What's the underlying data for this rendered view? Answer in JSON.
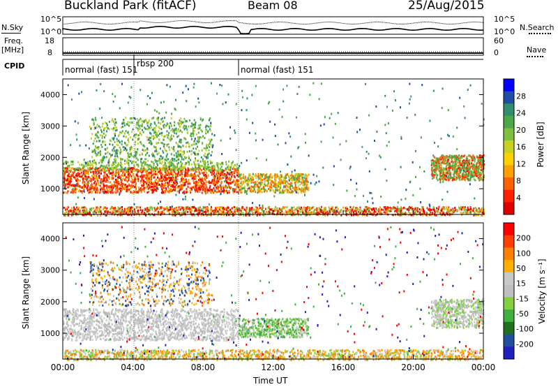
{
  "header": {
    "station": "Buckland Park (fitACF)",
    "beam": "Beam 08",
    "date": "25/Aug/2015"
  },
  "panels": {
    "nsky_label": "N.Sky",
    "nsky_ticks": [
      "10^5",
      "10^0"
    ],
    "nsearch_label": "N.Search",
    "nsearch_ticks": [
      "10^5",
      "10^0"
    ],
    "freq_label_1": "Freq.",
    "freq_label_2": "[MHz]",
    "freq_ticks": [
      "18",
      "8"
    ],
    "nave_label": "Nave",
    "nave_ticks": [
      "60",
      "0"
    ],
    "cpid_label": "CPID",
    "cpid_segments": [
      "normal (fast) 151",
      "rbsp 200",
      "normal (fast) 151"
    ]
  },
  "colors": {
    "power_scale": [
      "#0000ff",
      "#1f4ea8",
      "#2f8f6f",
      "#4aa84a",
      "#7fc040",
      "#c8d020",
      "#ffd000",
      "#ffa000",
      "#ff6000",
      "#ff2000",
      "#e00000"
    ],
    "velocity_scale": [
      "#2020c0",
      "#2050a0",
      "#207020",
      "#40b040",
      "#80d040",
      "#c0c0c0",
      "#c8c8c8",
      "#ffb000",
      "#ff8000",
      "#ff4000",
      "#ff0000"
    ]
  },
  "chart_data": [
    {
      "type": "heatmap",
      "title": "",
      "xlabel": "",
      "ylabel": "Slant Range [km]",
      "xlim": [
        "00:00",
        "00:00"
      ],
      "ylim": [
        180,
        4500
      ],
      "yticks": [
        "4000",
        "3000",
        "2000",
        "1000"
      ],
      "colorbar_label": "Power [dB]",
      "colorbar_ticks": [
        "28",
        "24",
        "20",
        "16",
        "12",
        "8",
        "4"
      ],
      "colorbar_range": [
        0,
        30
      ]
    },
    {
      "type": "heatmap",
      "title": "",
      "xlabel": "Time UT",
      "ylabel": "Slant Range [km]",
      "xlim": [
        "00:00",
        "00:00"
      ],
      "xticks": [
        "00:00",
        "04:00",
        "08:00",
        "12:00",
        "16:00",
        "20:00",
        "00:00"
      ],
      "ylim": [
        180,
        4500
      ],
      "yticks": [
        "4000",
        "3000",
        "2000",
        "1000"
      ],
      "colorbar_label": "Velocity [m s⁻¹]",
      "colorbar_ticks": [
        "200",
        "100",
        "50",
        "15",
        "-15",
        "-50",
        "-100",
        "-200"
      ],
      "colorbar_range": [
        -250,
        250
      ]
    }
  ]
}
